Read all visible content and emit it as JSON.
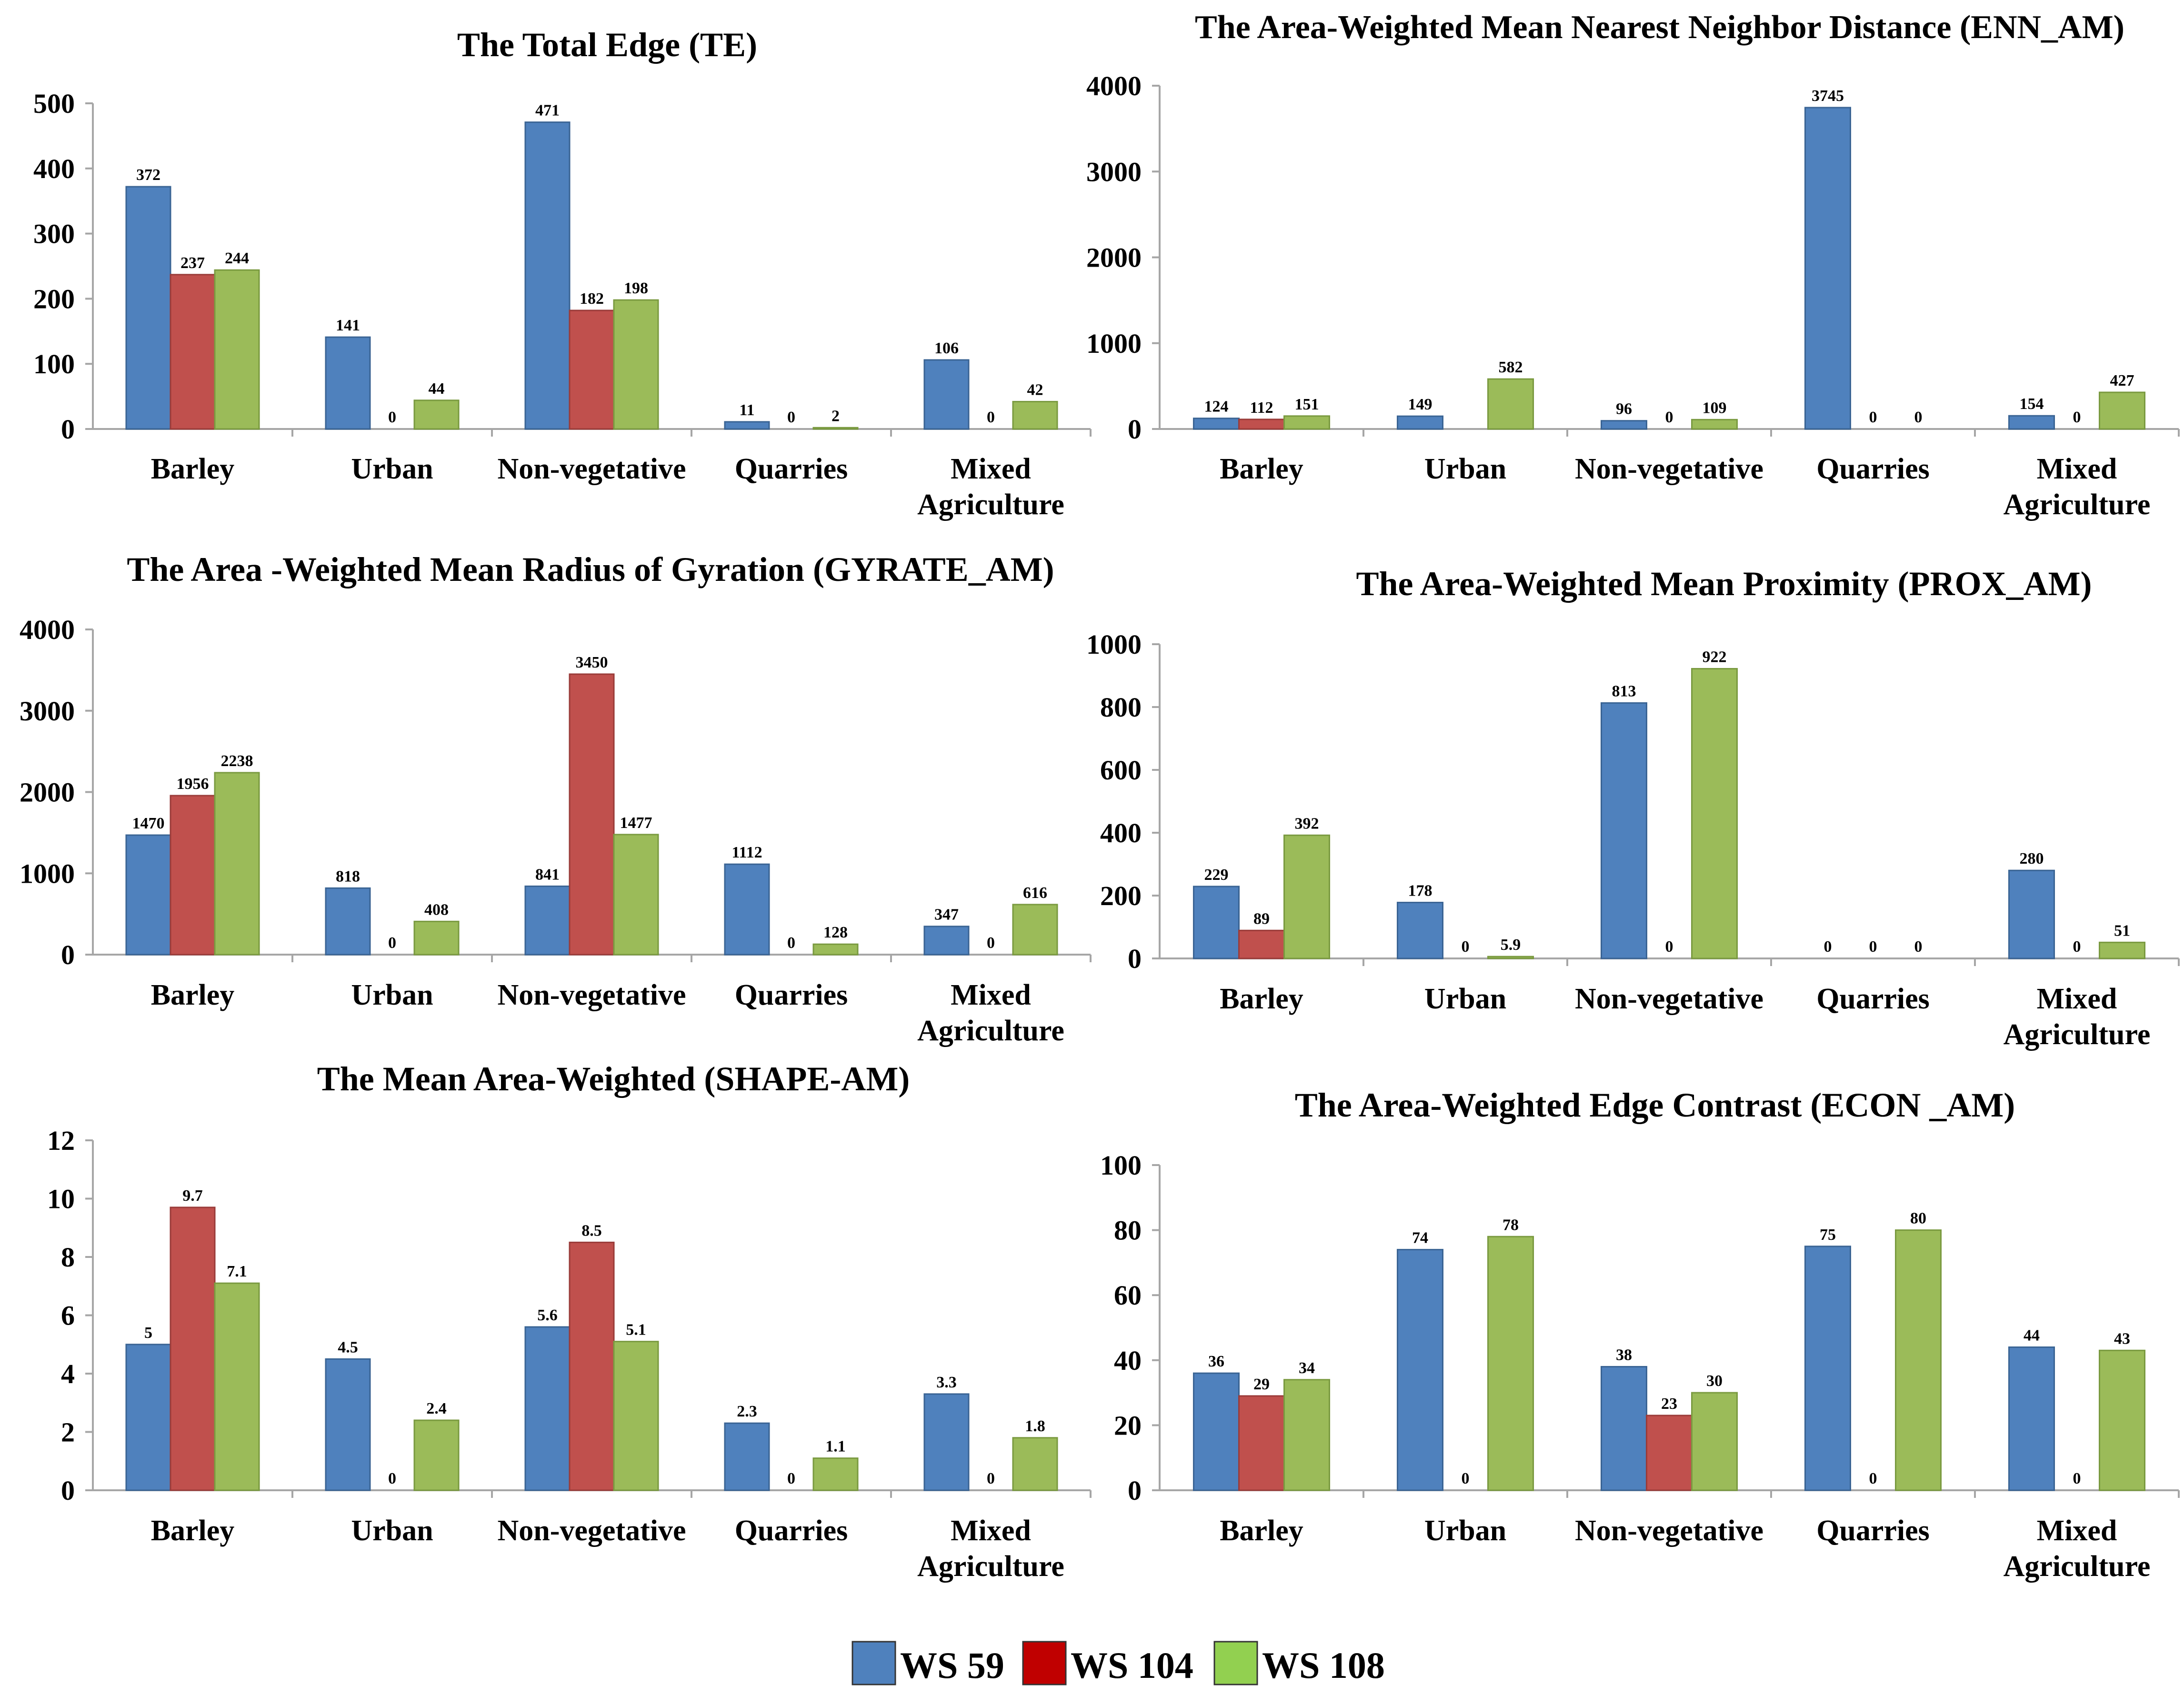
{
  "chart_data": [
    {
      "type": "bar",
      "title": "The Total Edge (TE)",
      "categories": [
        "Barley",
        "Urban",
        "Non-vegetative",
        "Quarries",
        "Mixed Agriculture"
      ],
      "series": [
        {
          "name": "WS 59",
          "values": [
            372,
            141,
            471,
            11,
            106
          ],
          "labels": [
            "372",
            "141",
            "471",
            "11",
            "106"
          ]
        },
        {
          "name": "WS 104",
          "values": [
            237,
            0,
            182,
            0,
            0
          ],
          "labels": [
            "237",
            "0",
            "182",
            "0",
            "0"
          ]
        },
        {
          "name": "WS 108",
          "values": [
            244,
            44,
            198,
            2,
            42
          ],
          "labels": [
            "244",
            "44",
            "198",
            "2",
            "42"
          ]
        }
      ],
      "ylim": [
        0,
        500
      ],
      "yticks": [
        "0",
        "100",
        "200",
        "300",
        "400",
        "500"
      ],
      "xlabel": "",
      "ylabel": ""
    },
    {
      "type": "bar",
      "title": "The Area-Weighted Mean Nearest Neighbor Distance (ENN_AM)",
      "categories": [
        "Barley",
        "Urban",
        "Non-vegetative",
        "Quarries",
        "Mixed Agriculture"
      ],
      "series": [
        {
          "name": "WS 59",
          "values": [
            124,
            149,
            96,
            3745,
            154
          ],
          "labels": [
            "124",
            "149",
            "96",
            "3745",
            "154"
          ]
        },
        {
          "name": "WS 104",
          "values": [
            112,
            0,
            0,
            0,
            0
          ],
          "labels": [
            "112",
            "",
            "0",
            "0",
            "0"
          ]
        },
        {
          "name": "WS 108",
          "values": [
            151,
            582,
            109,
            0,
            427
          ],
          "labels": [
            "151",
            "582",
            "109",
            "0",
            "427"
          ]
        }
      ],
      "ylim": [
        0,
        4000
      ],
      "yticks": [
        "0",
        "1000",
        "2000",
        "3000",
        "4000"
      ],
      "xlabel": "",
      "ylabel": ""
    },
    {
      "type": "bar",
      "title": "The Area -Weighted Mean Radius of Gyration (GYRATE_AM)",
      "categories": [
        "Barley",
        "Urban",
        "Non-vegetative",
        "Quarries",
        "Mixed Agriculture"
      ],
      "series": [
        {
          "name": "WS 59",
          "values": [
            1470,
            818,
            841,
            1112,
            347
          ],
          "labels": [
            "1470",
            "818",
            "841",
            "1112",
            "347"
          ]
        },
        {
          "name": "WS 104",
          "values": [
            1956,
            0,
            3450,
            0,
            0
          ],
          "labels": [
            "1956",
            "0",
            "3450",
            "0",
            "0"
          ]
        },
        {
          "name": "WS 108",
          "values": [
            2238,
            408,
            1477,
            128,
            616
          ],
          "labels": [
            "2238",
            "408",
            "1477",
            "128",
            "616"
          ]
        }
      ],
      "ylim": [
        0,
        4000
      ],
      "yticks": [
        "0",
        "1000",
        "2000",
        "3000",
        "4000"
      ],
      "xlabel": "",
      "ylabel": ""
    },
    {
      "type": "bar",
      "title": "The Area-Weighted Mean Proximity (PROX_AM)",
      "categories": [
        "Barley",
        "Urban",
        "Non-vegetative",
        "Quarries",
        "Mixed Agriculture"
      ],
      "series": [
        {
          "name": "WS 59",
          "values": [
            229,
            178,
            813,
            0,
            280
          ],
          "labels": [
            "229",
            "178",
            "813",
            "0",
            "280"
          ]
        },
        {
          "name": "WS 104",
          "values": [
            89,
            0,
            0,
            0,
            0
          ],
          "labels": [
            "89",
            "0",
            "0",
            "0",
            "0"
          ]
        },
        {
          "name": "WS 108",
          "values": [
            392,
            5.9,
            922,
            0,
            51
          ],
          "labels": [
            "392",
            "5.9",
            "922",
            "0",
            "51"
          ]
        }
      ],
      "ylim": [
        0,
        1000
      ],
      "yticks": [
        "0",
        "200",
        "400",
        "600",
        "800",
        "1000"
      ],
      "xlabel": "",
      "ylabel": ""
    },
    {
      "type": "bar",
      "title": "The Mean Area-Weighted (SHAPE-AM)",
      "categories": [
        "Barley",
        "Urban",
        "Non-vegetative",
        "Quarries",
        "Mixed Agriculture"
      ],
      "series": [
        {
          "name": "WS 59",
          "values": [
            5,
            4.5,
            5.6,
            2.3,
            3.3
          ],
          "labels": [
            "5",
            "4.5",
            "5.6",
            "2.3",
            "3.3"
          ]
        },
        {
          "name": "WS 104",
          "values": [
            9.7,
            0,
            8.5,
            0,
            0
          ],
          "labels": [
            "9.7",
            "0",
            "8.5",
            "0",
            "0"
          ]
        },
        {
          "name": "WS 108",
          "values": [
            7.1,
            2.4,
            5.1,
            1.1,
            1.8
          ],
          "labels": [
            "7.1",
            "2.4",
            "5.1",
            "1.1",
            "1.8"
          ]
        }
      ],
      "ylim": [
        0,
        12
      ],
      "yticks": [
        "0",
        "2",
        "4",
        "6",
        "8",
        "10",
        "12"
      ],
      "xlabel": "",
      "ylabel": ""
    },
    {
      "type": "bar",
      "title": "The Area-Weighted Edge Contrast (ECON _AM)",
      "categories": [
        "Barley",
        "Urban",
        "Non-vegetative",
        "Quarries",
        "Mixed Agriculture"
      ],
      "series": [
        {
          "name": "WS 59",
          "values": [
            36,
            74,
            38,
            75,
            44
          ],
          "labels": [
            "36",
            "74",
            "38",
            "75",
            "44"
          ]
        },
        {
          "name": "WS 104",
          "values": [
            29,
            0,
            23,
            0,
            0
          ],
          "labels": [
            "29",
            "0",
            "23",
            "0",
            "0"
          ]
        },
        {
          "name": "WS 108",
          "values": [
            34,
            78,
            30,
            80,
            43
          ],
          "labels": [
            "34",
            "78",
            "30",
            "80",
            "43"
          ]
        }
      ],
      "ylim": [
        0,
        100
      ],
      "yticks": [
        "0",
        "20",
        "40",
        "60",
        "80",
        "100"
      ],
      "xlabel": "",
      "ylabel": ""
    }
  ],
  "legend": {
    "position": "bottom-center",
    "items": [
      {
        "name": "WS 59",
        "color": "#4F81BD"
      },
      {
        "name": "WS 104",
        "color": "#C00000"
      },
      {
        "name": "WS 108",
        "color": "#92D050"
      }
    ]
  },
  "colors": {
    "series_fill": [
      "#4F81BD",
      "#C0504D",
      "#9BBB59"
    ],
    "series_stroke": [
      "#3A6494",
      "#9A3B39",
      "#7A9A40"
    ],
    "axis": "#A6A6A6",
    "text": "#000000"
  }
}
